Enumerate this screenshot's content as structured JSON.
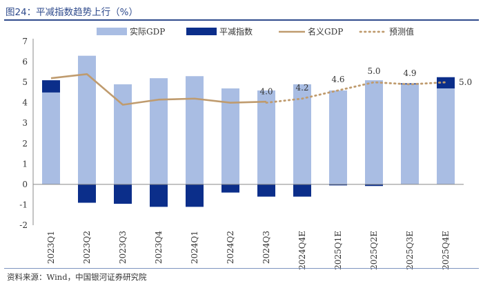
{
  "header": {
    "title": "图24：平减指数趋势上行（%）"
  },
  "footer": {
    "source": "资料来源：Wind，中国银河证券研究院"
  },
  "colors": {
    "real": "#a9bde3",
    "deflator": "#0b2e8a",
    "nominal": "#bf9b6e",
    "forecast": "#bf9b6e",
    "axis": "#888888",
    "text": "#333333"
  },
  "chart_data": {
    "type": "bar",
    "title": "平减指数趋势上行（%）",
    "categories": [
      "2023Q1",
      "2023Q2",
      "2023Q3",
      "2023Q4",
      "2024Q1",
      "2024Q2",
      "2024Q3",
      "2024Q4E",
      "2025Q1E",
      "2025Q2E",
      "2025Q3E",
      "2025Q4E"
    ],
    "ylim": [
      -2,
      7
    ],
    "yticks": [
      -2,
      -1,
      0,
      1,
      2,
      3,
      4,
      5,
      6,
      7
    ],
    "legend_position": "top",
    "series": [
      {
        "name": "实际GDP",
        "kind": "bar",
        "values": [
          4.5,
          6.3,
          4.9,
          5.2,
          5.3,
          4.7,
          4.6,
          4.9,
          4.6,
          5.1,
          4.9,
          4.7
        ]
      },
      {
        "name": "平减指数",
        "kind": "bar",
        "values": [
          0.6,
          -0.9,
          -0.95,
          -1.1,
          -1.1,
          -0.4,
          -0.6,
          -0.6,
          -0.05,
          -0.08,
          0.05,
          0.55
        ]
      },
      {
        "name": "名义GDP",
        "kind": "line",
        "values": [
          5.2,
          5.4,
          3.9,
          4.15,
          4.2,
          4.0,
          4.05,
          null,
          null,
          null,
          null,
          null
        ]
      },
      {
        "name": "预测值",
        "kind": "dotted",
        "values": [
          null,
          null,
          null,
          null,
          null,
          null,
          4.0,
          4.2,
          4.6,
          5.0,
          4.9,
          5.0
        ]
      }
    ],
    "annotations": [
      {
        "category": "2024Q3",
        "value": 4.0,
        "label": "4.0"
      },
      {
        "category": "2024Q4E",
        "value": 4.2,
        "label": "4.2"
      },
      {
        "category": "2025Q1E",
        "value": 4.6,
        "label": "4.6"
      },
      {
        "category": "2025Q2E",
        "value": 5.0,
        "label": "5.0"
      },
      {
        "category": "2025Q3E",
        "value": 4.9,
        "label": "4.9"
      },
      {
        "category": "2025Q4E",
        "value": 5.0,
        "label": "5.0"
      }
    ]
  }
}
